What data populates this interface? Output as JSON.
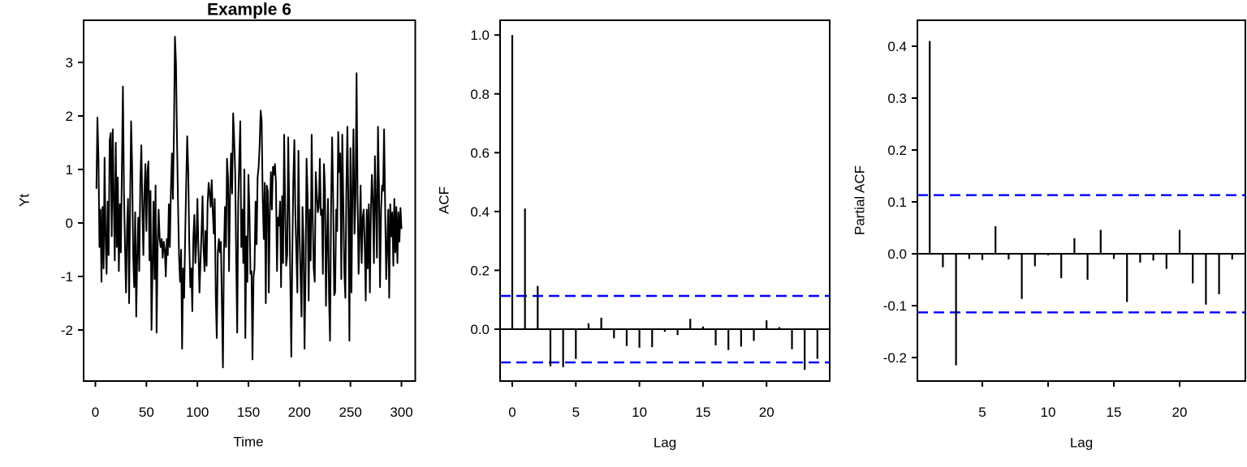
{
  "figure": {
    "background": "#FFFFFF",
    "axis_color": "#000000"
  },
  "chart_data": [
    {
      "type": "line",
      "title": "Example 6",
      "xlabel": "Time",
      "ylabel": "Yt",
      "x_ticks": [
        0,
        50,
        100,
        150,
        200,
        250,
        300
      ],
      "y_ticks": [
        -2,
        -1,
        0,
        1,
        2,
        3
      ],
      "xlim": [
        -11,
        313
      ],
      "ylim": [
        -2.95,
        3.75
      ],
      "line_color": "#000000",
      "x_start": 1,
      "values": [
        0.65,
        1.97,
        1.2,
        -0.45,
        0.25,
        -1.1,
        0.3,
        -0.85,
        1.22,
        -0.3,
        -0.95,
        0.4,
        -0.6,
        1.55,
        1.68,
        -0.25,
        1.75,
        0.45,
        -0.7,
        1.5,
        -0.45,
        0.85,
        -0.9,
        0.35,
        -0.55,
        1.1,
        2.55,
        0.6,
        -0.4,
        -1.3,
        -0.1,
        0.45,
        -1.5,
        0.3,
        1.9,
        1.1,
        -0.6,
        -1.2,
        0.2,
        -1.75,
        -0.65,
        0.1,
        -0.9,
        0.75,
        1.45,
        0.35,
        -0.6,
        0.55,
        1.1,
        -0.15,
        0.95,
        1.15,
        -0.7,
        0.6,
        -2.0,
        -0.85,
        0.4,
        -1.05,
        0.7,
        -2.05,
        -0.4,
        0.25,
        -0.3,
        -0.45,
        -0.3,
        -0.65,
        -0.35,
        -0.5,
        -1.0,
        -0.3,
        -0.6,
        0.35,
        -0.45,
        0.6,
        1.3,
        0.45,
        1.75,
        3.48,
        2.98,
        1.6,
        0.35,
        -0.6,
        -1.1,
        -0.5,
        -2.35,
        -0.85,
        -1.4,
        -0.25,
        0.7,
        1.62,
        0.95,
        -0.35,
        -1.2,
        -0.85,
        -1.65,
        -0.3,
        0.15,
        -0.75,
        -0.35,
        0.45,
        -0.5,
        -1.3,
        -0.75,
        -0.2,
        0.5,
        -0.45,
        -0.9,
        -0.15,
        -0.8,
        0.35,
        0.75,
        0.55,
        0.3,
        0.8,
        0.25,
        -0.2,
        0.45,
        -1.4,
        -2.15,
        -0.55,
        -0.3,
        -0.55,
        -0.35,
        -1.5,
        -2.7,
        -0.6,
        0.3,
        -0.45,
        1.2,
        0.85,
        -0.9,
        0.6,
        1.3,
        0.55,
        2.05,
        1.6,
        0.95,
        -0.65,
        -2.05,
        0.35,
        1.2,
        1.9,
        -0.45,
        0.25,
        -0.75,
        1.0,
        -2.15,
        -0.25,
        -1.1,
        0.9,
        0.2,
        -0.95,
        -0.9,
        -2.55,
        -1.0,
        -0.85,
        0.4,
        -0.4,
        0.85,
        1.05,
        1.45,
        2.1,
        1.9,
        0.45,
        -0.3,
        0.75,
        -1.5,
        0.7,
        0.6,
        -1.3,
        0.25,
        0.95,
        0.25,
        1.05,
        0.9,
        1.1,
        0.75,
        -0.9,
        0.1,
        -0.05,
        0.4,
        -1.2,
        0.5,
        -0.75,
        1.65,
        0.35,
        -0.8,
        -0.6,
        1.6,
        0.3,
        -0.95,
        -2.5,
        -0.65,
        0.8,
        1.55,
        0.2,
        -0.6,
        -1.3,
        1.35,
        -0.15,
        -0.9,
        -1.75,
        0.3,
        -0.4,
        -2.35,
        -0.9,
        1.2,
        0.5,
        -1.45,
        0.25,
        -0.7,
        1.65,
        0.1,
        -0.85,
        -1.1,
        0.95,
        0.55,
        0.2,
        0.3,
        1.2,
        0.15,
        0.25,
        -0.95,
        1.1,
        0.65,
        -1.55,
        -0.35,
        0.45,
        -1.4,
        -2.2,
        0.3,
        1.6,
        0.55,
        -1.35,
        -1.3,
        0.25,
        -0.15,
        1.7,
        0.95,
        1.3,
        -1.05,
        1.65,
        0.35,
        -0.9,
        -1.4,
        0.6,
        1.8,
        0.25,
        -2.2,
        1.4,
        -1.3,
        0.65,
        1.75,
        -0.2,
        0.55,
        2.8,
        0.45,
        -0.95,
        -0.2,
        0.7,
        -0.75,
        0.1,
        0.25,
        -0.45,
        -1.45,
        0.25,
        -0.85,
        0.35,
        -1.3,
        0.2,
        0.9,
        0.4,
        -0.75,
        1.25,
        0.35,
        -0.65,
        1.8,
        0.55,
        -1.2,
        0.25,
        0.7,
        0.6,
        1.75,
        0.3,
        -1.05,
        -0.45,
        0.25,
        -1.4,
        0.35,
        -0.25,
        0.2,
        -0.8,
        0.45,
        -0.55,
        0.3,
        -0.75,
        0.2,
        -0.35,
        0.28,
        -0.1
      ]
    },
    {
      "type": "bar",
      "title": "",
      "xlabel": "Lag",
      "ylabel": "ACF",
      "x_ticks": [
        0,
        5,
        10,
        15,
        20
      ],
      "y_ticks": [
        0,
        0.2,
        0.4,
        0.6,
        0.8,
        1
      ],
      "y_tick_labels": [
        "0.0",
        "0.2",
        "0.4",
        "0.6",
        "0.8",
        "1.0"
      ],
      "xlim": [
        -1,
        25
      ],
      "ylim": [
        -0.18,
        1.05
      ],
      "conf_level": 0.113,
      "conf_color": "#0000FF",
      "bar_color": "#000000",
      "lag_start": 0,
      "values": [
        1.0,
        0.41,
        0.147,
        -0.126,
        -0.129,
        -0.101,
        0.02,
        0.039,
        -0.031,
        -0.057,
        -0.063,
        -0.061,
        -0.009,
        -0.02,
        0.035,
        0.009,
        -0.055,
        -0.071,
        -0.059,
        -0.04,
        0.03,
        0.007,
        -0.068,
        -0.138,
        -0.101
      ]
    },
    {
      "type": "bar",
      "title": "",
      "xlabel": "Lag",
      "ylabel": "Partial ACF",
      "x_ticks": [
        5,
        10,
        15,
        20
      ],
      "y_ticks": [
        -0.2,
        -0.1,
        0,
        0.1,
        0.2,
        0.3,
        0.4
      ],
      "y_tick_labels": [
        "-0.2",
        "-0.1",
        "0.0",
        "0.1",
        "0.2",
        "0.3",
        "0.4"
      ],
      "xlim": [
        0.08,
        24.92
      ],
      "ylim": [
        -0.25,
        0.44
      ],
      "conf_level": 0.113,
      "conf_color": "#0000FF",
      "bar_color": "#000000",
      "lag_start": 1,
      "values": [
        0.41,
        -0.026,
        -0.215,
        -0.01,
        -0.012,
        0.053,
        -0.011,
        -0.087,
        -0.024,
        -0.003,
        -0.047,
        0.03,
        -0.05,
        0.046,
        -0.01,
        -0.093,
        -0.017,
        -0.013,
        -0.029,
        0.046,
        -0.057,
        -0.098,
        -0.078,
        -0.011
      ]
    }
  ]
}
